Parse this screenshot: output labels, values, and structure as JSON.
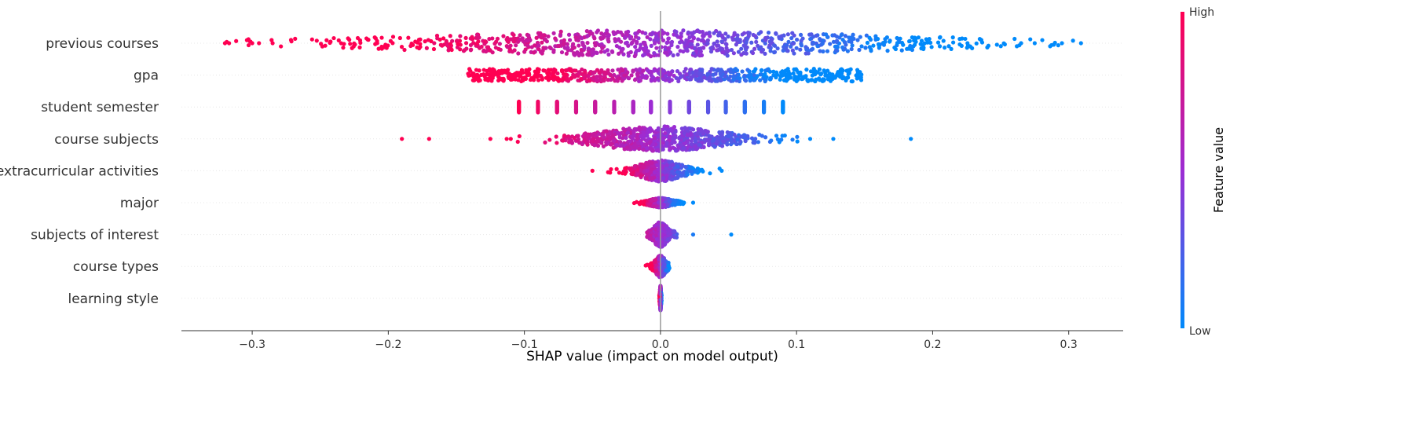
{
  "chart_data": {
    "type": "scatter",
    "subtype": "shap-beeswarm",
    "xlabel": "SHAP value (impact on model output)",
    "xlim": [
      -0.352,
      0.34
    ],
    "xticks": [
      -0.3,
      -0.2,
      -0.1,
      0.0,
      0.1,
      0.2,
      0.3
    ],
    "xtick_labels": [
      "−0.3",
      "−0.2",
      "−0.1",
      "0.0",
      "0.1",
      "0.2",
      "0.3"
    ],
    "grid": false,
    "zero_line": true,
    "colorbar": {
      "title": "Feature value",
      "high_label": "High",
      "low_label": "Low",
      "high_color": "#ff0052",
      "mid_color": "#9d2cd3",
      "low_color": "#008afb"
    },
    "features": [
      {
        "name": "previous courses",
        "min": -0.32,
        "max": 0.31,
        "density_center": 0.0,
        "spread": 0.13,
        "y_spread": 0.42,
        "outliers": [
          -0.32,
          -0.317,
          -0.3,
          -0.295,
          -0.285,
          0.265,
          0.275,
          0.295,
          0.309
        ]
      },
      {
        "name": "gpa",
        "min": -0.142,
        "max": 0.148,
        "density_center": 0.0,
        "spread": 0.09,
        "y_spread": 0.2,
        "uniform": true,
        "outliers": []
      },
      {
        "name": "student semester",
        "discrete_values": [
          -0.104,
          -0.09,
          -0.076,
          -0.062,
          -0.048,
          -0.034,
          -0.02,
          -0.007,
          0.007,
          0.021,
          0.035,
          0.048,
          0.062,
          0.076,
          0.09
        ]
      },
      {
        "name": "course subjects",
        "min": -0.19,
        "max": 0.184,
        "density_center": 0.0,
        "spread": 0.035,
        "y_spread": 0.4,
        "outliers": [
          -0.19,
          -0.17,
          -0.125,
          -0.113,
          -0.11,
          0.11,
          0.127,
          0.184
        ]
      },
      {
        "name": "extracurricular activities",
        "min": -0.05,
        "max": 0.045,
        "density_center": 0.0,
        "spread": 0.012,
        "y_spread": 0.34,
        "outliers": [
          -0.05,
          0.045
        ]
      },
      {
        "name": "major",
        "min": -0.021,
        "max": 0.024,
        "density_center": 0.0,
        "spread": 0.007,
        "y_spread": 0.15,
        "outliers": [
          0.024
        ]
      },
      {
        "name": "subjects of interest",
        "min": -0.01,
        "max": 0.052,
        "density_center": 0.0,
        "spread": 0.004,
        "y_spread": 0.4,
        "outliers": [
          0.024,
          0.052
        ]
      },
      {
        "name": "course types",
        "min": -0.011,
        "max": 0.007,
        "density_center": 0.0,
        "spread": 0.003,
        "y_spread": 0.35,
        "outliers": []
      },
      {
        "name": "learning style",
        "min": -0.001,
        "max": 0.001,
        "density_center": 0.0,
        "spread": 0.0003,
        "y_spread": 0.4,
        "outliers": []
      }
    ]
  }
}
